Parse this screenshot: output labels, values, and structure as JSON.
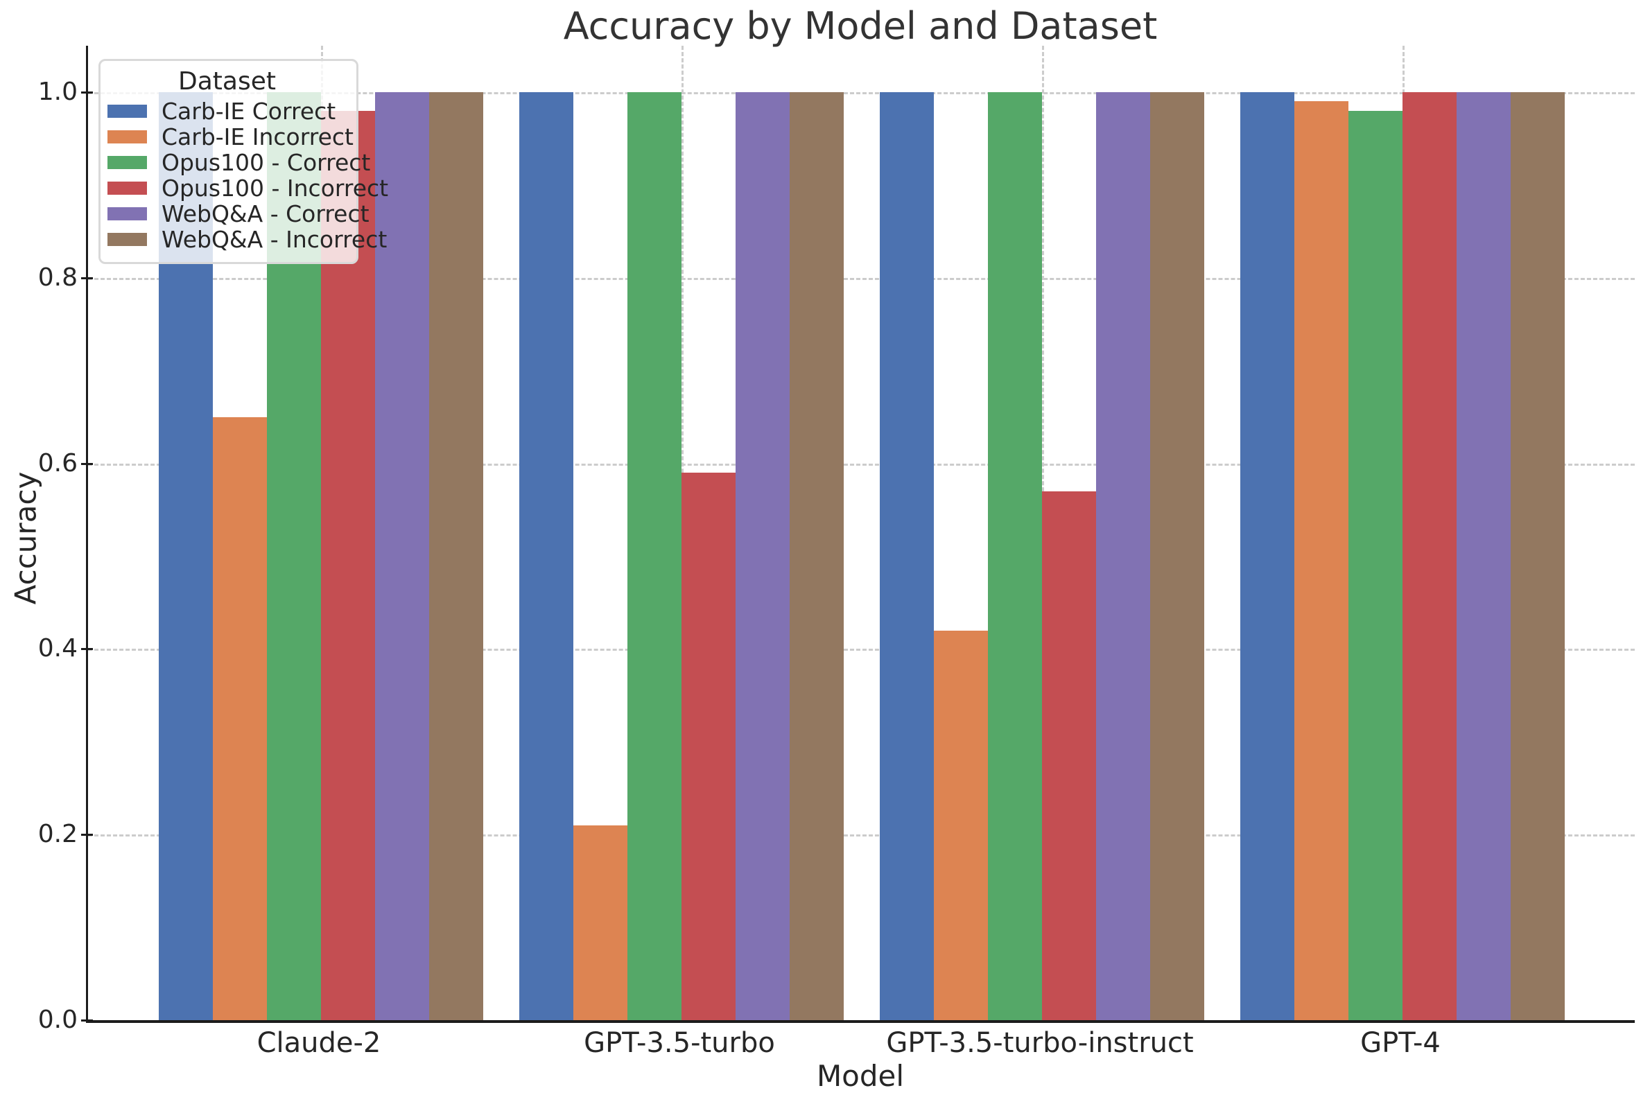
{
  "chart_data": {
    "type": "bar",
    "title": "Accuracy by Model and Dataset",
    "xlabel": "Model",
    "ylabel": "Accuracy",
    "legend_title": "Dataset",
    "legend_position": "upper left",
    "grid": true,
    "ylim": [
      0,
      1.05
    ],
    "yticks": [
      0.0,
      0.2,
      0.4,
      0.6,
      0.8,
      1.0
    ],
    "ytick_labels": [
      "0.0",
      "0.2",
      "0.4",
      "0.6",
      "0.8",
      "1.0"
    ],
    "categories": [
      "Claude-2",
      "GPT-3.5-turbo",
      "GPT-3.5-turbo-instruct",
      "GPT-4"
    ],
    "series": [
      {
        "name": "Carb-IE Correct",
        "color": "#4C72B0",
        "values": [
          1.0,
          1.0,
          1.0,
          1.0
        ]
      },
      {
        "name": "Carb-IE Incorrect",
        "color": "#DD8452",
        "values": [
          0.65,
          0.21,
          0.42,
          0.99
        ]
      },
      {
        "name": "Opus100 - Correct",
        "color": "#55A868",
        "values": [
          1.0,
          1.0,
          1.0,
          0.98
        ]
      },
      {
        "name": "Opus100 - Incorrect",
        "color": "#C44E52",
        "values": [
          0.98,
          0.59,
          0.57,
          1.0
        ]
      },
      {
        "name": "WebQ&A - Correct",
        "color": "#8172B3",
        "values": [
          1.0,
          1.0,
          1.0,
          1.0
        ]
      },
      {
        "name": "WebQ&A - Incorrect",
        "color": "#937860",
        "values": [
          1.0,
          1.0,
          1.0,
          1.0
        ]
      }
    ],
    "style": {
      "grid_color": "#cccccc",
      "spine_color": "#1c1c1c",
      "text_color": "#262626",
      "title_color": "#333333",
      "background": "#ffffff"
    }
  }
}
